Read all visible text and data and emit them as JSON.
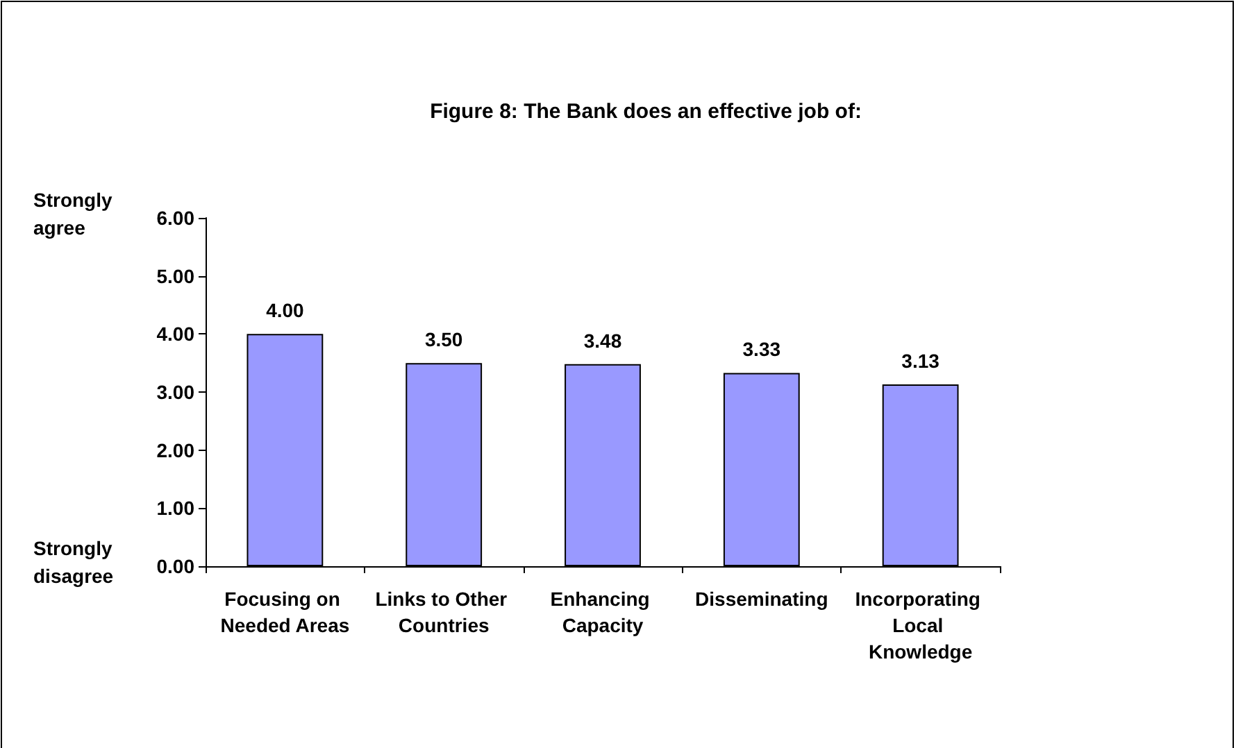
{
  "chart_data": {
    "type": "bar",
    "title": "Figure 8: The Bank does an effective job of:",
    "categories": [
      "Focusing on Needed Areas",
      "Links to Other Countries",
      "Enhancing Capacity",
      "Disseminating",
      "Incorporating Local Knowledge"
    ],
    "values": [
      4.0,
      3.5,
      3.48,
      3.33,
      3.13
    ],
    "value_labels": [
      "4.00",
      "3.50",
      "3.48",
      "3.33",
      "3.13"
    ],
    "color": "#9999ff",
    "ylim": [
      0,
      6
    ],
    "yticks": [
      {
        "value": 0,
        "label": "0.00"
      },
      {
        "value": 1,
        "label": "1.00"
      },
      {
        "value": 2,
        "label": "2.00"
      },
      {
        "value": 3,
        "label": "3.00"
      },
      {
        "value": 4,
        "label": "4.00"
      },
      {
        "value": 5,
        "label": "5.00"
      },
      {
        "value": 6,
        "label": "6.00"
      }
    ],
    "annotations": [
      "Strongly agree",
      "Strongly disagree"
    ],
    "grid": false
  }
}
